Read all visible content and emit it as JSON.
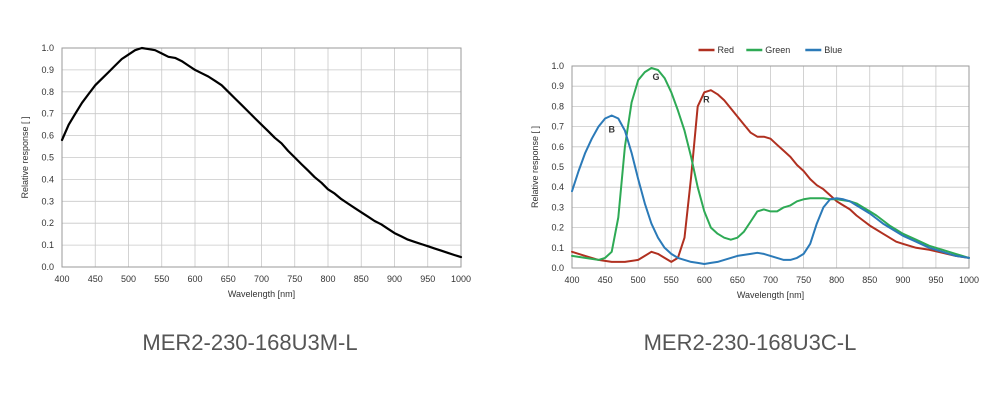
{
  "chart_data": [
    {
      "type": "line",
      "title": "",
      "xlabel": "Wavelength [nm]",
      "ylabel": "Relative response [ ]",
      "xlim": [
        400,
        1000
      ],
      "ylim": [
        0,
        1.0
      ],
      "x_ticks": [
        "400",
        "450",
        "500",
        "550",
        "600",
        "650",
        "700",
        "750",
        "800",
        "850",
        "900",
        "950",
        "1000"
      ],
      "y_ticks": [
        "0.0",
        "0.1",
        "0.2",
        "0.3",
        "0.4",
        "0.5",
        "0.6",
        "0.7",
        "0.8",
        "0.9",
        "1.0"
      ],
      "grid": true,
      "series": [
        {
          "color": "#000000",
          "x": [
            400,
            410,
            420,
            430,
            440,
            450,
            460,
            470,
            480,
            490,
            500,
            510,
            520,
            530,
            540,
            550,
            560,
            570,
            580,
            590,
            600,
            610,
            620,
            630,
            640,
            650,
            660,
            670,
            680,
            690,
            700,
            710,
            720,
            730,
            740,
            750,
            760,
            770,
            780,
            790,
            800,
            810,
            820,
            830,
            840,
            850,
            860,
            870,
            880,
            890,
            900,
            910,
            920,
            930,
            940,
            950,
            960,
            970,
            980,
            990,
            1000
          ],
          "y": [
            0.58,
            0.65,
            0.7,
            0.75,
            0.79,
            0.83,
            0.86,
            0.89,
            0.92,
            0.95,
            0.97,
            0.99,
            1.0,
            0.995,
            0.99,
            0.975,
            0.96,
            0.955,
            0.94,
            0.92,
            0.9,
            0.885,
            0.87,
            0.85,
            0.83,
            0.8,
            0.77,
            0.74,
            0.71,
            0.68,
            0.65,
            0.62,
            0.59,
            0.565,
            0.53,
            0.5,
            0.47,
            0.44,
            0.41,
            0.385,
            0.355,
            0.335,
            0.31,
            0.29,
            0.27,
            0.25,
            0.23,
            0.21,
            0.195,
            0.175,
            0.155,
            0.14,
            0.125,
            0.115,
            0.105,
            0.095,
            0.085,
            0.075,
            0.065,
            0.055,
            0.045
          ]
        }
      ]
    },
    {
      "type": "line",
      "title": "",
      "xlabel": "Wavelength [nm]",
      "ylabel": "Relative response [ ]",
      "xlim": [
        400,
        1000
      ],
      "ylim": [
        0,
        1.0
      ],
      "x_ticks": [
        "400",
        "450",
        "500",
        "550",
        "600",
        "650",
        "700",
        "750",
        "800",
        "850",
        "900",
        "950",
        "1000"
      ],
      "y_ticks": [
        "0.0",
        "0.1",
        "0.2",
        "0.3",
        "0.4",
        "0.5",
        "0.6",
        "0.7",
        "0.8",
        "0.9",
        "1.0"
      ],
      "grid": true,
      "legend": "top-center",
      "annotations": [
        {
          "text": "B",
          "x": 460,
          "y": 0.67
        },
        {
          "text": "G",
          "x": 527,
          "y": 0.93
        },
        {
          "text": "R",
          "x": 603,
          "y": 0.82
        }
      ],
      "series": [
        {
          "name": "Red",
          "color": "#b03020",
          "x": [
            400,
            420,
            440,
            460,
            480,
            500,
            510,
            520,
            530,
            540,
            550,
            560,
            570,
            580,
            590,
            600,
            610,
            620,
            630,
            640,
            650,
            660,
            670,
            680,
            690,
            700,
            710,
            720,
            730,
            740,
            750,
            760,
            770,
            780,
            790,
            800,
            810,
            820,
            830,
            840,
            850,
            860,
            870,
            880,
            890,
            900,
            920,
            940,
            960,
            980,
            1000
          ],
          "y": [
            0.08,
            0.06,
            0.04,
            0.03,
            0.03,
            0.04,
            0.06,
            0.08,
            0.07,
            0.05,
            0.03,
            0.05,
            0.15,
            0.45,
            0.8,
            0.87,
            0.88,
            0.86,
            0.83,
            0.79,
            0.75,
            0.71,
            0.67,
            0.65,
            0.65,
            0.64,
            0.61,
            0.58,
            0.55,
            0.51,
            0.48,
            0.44,
            0.41,
            0.39,
            0.36,
            0.33,
            0.31,
            0.29,
            0.26,
            0.235,
            0.21,
            0.19,
            0.17,
            0.15,
            0.13,
            0.12,
            0.1,
            0.09,
            0.075,
            0.06,
            0.05
          ]
        },
        {
          "name": "Green",
          "color": "#2eaa55",
          "x": [
            400,
            420,
            440,
            450,
            460,
            470,
            480,
            490,
            500,
            510,
            520,
            530,
            540,
            550,
            560,
            570,
            580,
            590,
            600,
            610,
            620,
            630,
            640,
            650,
            660,
            670,
            680,
            690,
            700,
            710,
            720,
            730,
            740,
            750,
            760,
            770,
            780,
            790,
            800,
            810,
            820,
            830,
            840,
            850,
            860,
            870,
            880,
            890,
            900,
            920,
            940,
            960,
            980,
            1000
          ],
          "y": [
            0.06,
            0.05,
            0.04,
            0.05,
            0.08,
            0.25,
            0.6,
            0.82,
            0.93,
            0.97,
            0.99,
            0.98,
            0.94,
            0.87,
            0.78,
            0.68,
            0.55,
            0.4,
            0.28,
            0.2,
            0.17,
            0.15,
            0.14,
            0.15,
            0.18,
            0.23,
            0.28,
            0.29,
            0.28,
            0.28,
            0.3,
            0.31,
            0.33,
            0.34,
            0.345,
            0.345,
            0.345,
            0.34,
            0.34,
            0.335,
            0.33,
            0.32,
            0.3,
            0.28,
            0.26,
            0.235,
            0.21,
            0.19,
            0.17,
            0.14,
            0.11,
            0.09,
            0.07,
            0.05
          ]
        },
        {
          "name": "Blue",
          "color": "#2b7ab8",
          "x": [
            400,
            410,
            420,
            430,
            440,
            450,
            460,
            470,
            480,
            490,
            500,
            510,
            520,
            530,
            540,
            550,
            560,
            570,
            580,
            590,
            600,
            610,
            620,
            630,
            640,
            650,
            660,
            670,
            680,
            690,
            700,
            710,
            720,
            730,
            740,
            750,
            760,
            770,
            780,
            790,
            800,
            810,
            820,
            830,
            840,
            850,
            860,
            870,
            880,
            890,
            900,
            920,
            940,
            960,
            980,
            1000
          ],
          "y": [
            0.38,
            0.48,
            0.57,
            0.64,
            0.7,
            0.74,
            0.755,
            0.74,
            0.68,
            0.57,
            0.44,
            0.32,
            0.22,
            0.15,
            0.1,
            0.07,
            0.05,
            0.04,
            0.03,
            0.025,
            0.02,
            0.025,
            0.03,
            0.04,
            0.05,
            0.06,
            0.065,
            0.07,
            0.075,
            0.07,
            0.06,
            0.05,
            0.04,
            0.04,
            0.05,
            0.07,
            0.12,
            0.22,
            0.3,
            0.34,
            0.345,
            0.34,
            0.33,
            0.31,
            0.29,
            0.27,
            0.245,
            0.22,
            0.2,
            0.18,
            0.16,
            0.13,
            0.1,
            0.08,
            0.06,
            0.05
          ]
        }
      ]
    }
  ],
  "captions": {
    "left": "MER2-230-168U3M-L",
    "right": "MER2-230-168U3C-L"
  }
}
